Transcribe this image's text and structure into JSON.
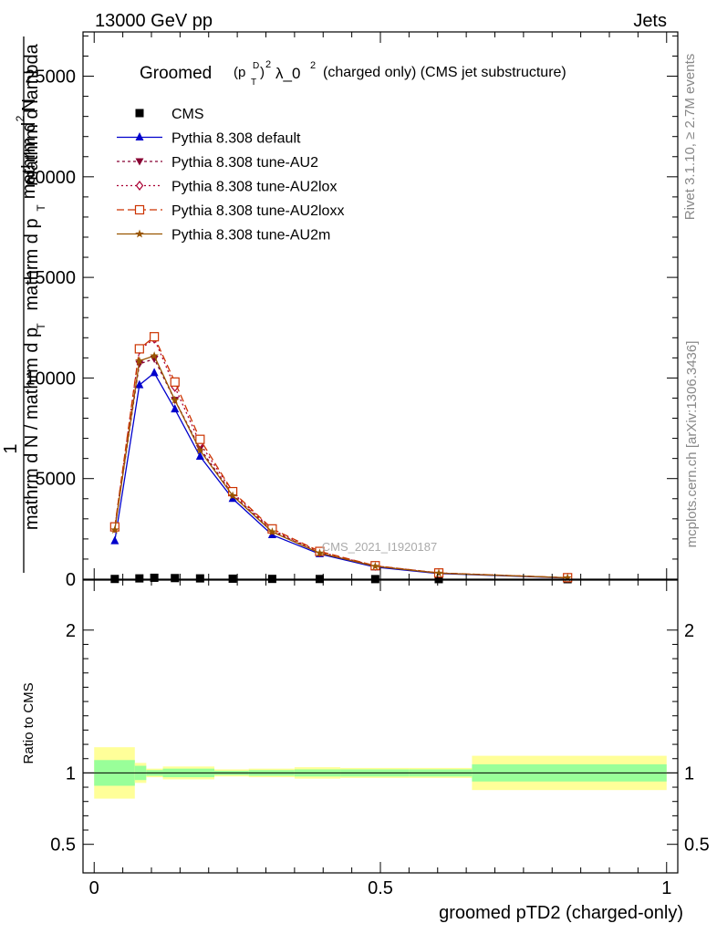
{
  "header": {
    "left": "13000 GeV pp",
    "right": "Jets"
  },
  "title": {
    "prefix": "Groomed",
    "p": "(p",
    "sup_d": "D",
    "sub_t": "T",
    "close": ")",
    "sq1": "2",
    "lambda": "λ_0",
    "sq2": "2",
    "rest": "(charged only) (CMS jet substructure)"
  },
  "y_axis_label": {
    "numerator_1": "mathrm d",
    "numerator_2": "N",
    "numerator_sup": "2",
    "denominator_1": "mathrm d p",
    "denominator_sub": "T",
    "denominator_2": "mathrm d lambda",
    "prefactor": "1",
    "prefactor_den_1": "mathrm d N / mathrm d p",
    "prefactor_den_sub": "T"
  },
  "ratio_ylabel": "Ratio to CMS",
  "xlabel": "groomed pTD2 (charged-only)",
  "side_text": {
    "rivet": "Rivet 3.1.10, ≥ 2.7M events",
    "mcplots": "mcplots.cern.ch [arXiv:1306.3436]"
  },
  "watermark": "CMS_2021_I1920187",
  "legend": [
    {
      "label": "CMS",
      "color": "#000000",
      "marker": "square",
      "dash": ""
    },
    {
      "label": "Pythia 8.308 default",
      "color": "#0000cc",
      "marker": "triangle-up",
      "dash": ""
    },
    {
      "label": "Pythia 8.308 tune-AU2",
      "color": "#880033",
      "marker": "triangle-down",
      "dash": "3,3"
    },
    {
      "label": "Pythia 8.308 tune-AU2lox",
      "color": "#aa0033",
      "marker": "diamond-open",
      "dash": "2,3"
    },
    {
      "label": "Pythia 8.308 tune-AU2loxx",
      "color": "#cc3300",
      "marker": "square-open",
      "dash": "8,4"
    },
    {
      "label": "Pythia 8.308 tune-AU2m",
      "color": "#995500",
      "marker": "star",
      "dash": ""
    }
  ],
  "chart_data": {
    "type": "line",
    "xlim": [
      -0.0195,
      1.0195
    ],
    "ylim": [
      0,
      27200
    ],
    "x_ticks": [
      0,
      0.5,
      1
    ],
    "x_tick_labels": [
      "0",
      "0.5",
      "1"
    ],
    "y_ticks": [
      0,
      5000,
      10000,
      15000,
      20000,
      25000
    ],
    "y_tick_labels": [
      "0",
      "5000",
      "10000",
      "15000",
      "20000",
      "25000"
    ],
    "x": [
      0.036,
      0.079,
      0.105,
      0.141,
      0.185,
      0.242,
      0.311,
      0.394,
      0.491,
      0.602,
      0.827
    ],
    "series": [
      {
        "name": "CMS",
        "values": [
          12,
          40,
          70,
          55,
          40,
          25,
          15,
          10,
          5,
          3,
          1
        ]
      },
      {
        "name": "Pythia 8.308 default",
        "values": [
          1900,
          9650,
          10250,
          8450,
          6100,
          4000,
          2200,
          1250,
          600,
          280,
          60
        ]
      },
      {
        "name": "Pythia 8.308 tune-AU2",
        "values": [
          2500,
          10700,
          10950,
          8900,
          6500,
          4200,
          2400,
          1300,
          650,
          300,
          70
        ]
      },
      {
        "name": "Pythia 8.308 tune-AU2lox",
        "values": [
          2550,
          11400,
          11950,
          9550,
          6750,
          4300,
          2450,
          1350,
          660,
          310,
          70
        ]
      },
      {
        "name": "Pythia 8.308 tune-AU2loxx",
        "values": [
          2600,
          11450,
          12050,
          9800,
          6950,
          4350,
          2500,
          1380,
          670,
          310,
          75
        ]
      },
      {
        "name": "Pythia 8.308 tune-AU2m",
        "values": [
          2450,
          10850,
          11100,
          8900,
          6400,
          4150,
          2350,
          1300,
          640,
          300,
          70
        ]
      }
    ],
    "ratio": {
      "ylabel": "Ratio to CMS",
      "ylim": [
        0.3,
        2.35
      ],
      "y_ticks": [
        0.5,
        1,
        2
      ],
      "y_tick_labels": [
        "0.5",
        "1",
        "2"
      ],
      "bins": [
        {
          "lo": 0.0,
          "hi": 0.071,
          "inner": [
            0.91,
            1.09
          ],
          "outer": [
            0.82,
            1.18
          ]
        },
        {
          "lo": 0.071,
          "hi": 0.091,
          "inner": [
            0.95,
            1.05
          ],
          "outer": [
            0.93,
            1.07
          ]
        },
        {
          "lo": 0.091,
          "hi": 0.12,
          "inner": [
            0.98,
            1.02
          ],
          "outer": [
            0.97,
            1.03
          ]
        },
        {
          "lo": 0.12,
          "hi": 0.21,
          "inner": [
            0.97,
            1.03
          ],
          "outer": [
            0.955,
            1.045
          ]
        },
        {
          "lo": 0.21,
          "hi": 0.27,
          "inner": [
            0.985,
            1.015
          ],
          "outer": [
            0.975,
            1.025
          ]
        },
        {
          "lo": 0.27,
          "hi": 0.35,
          "inner": [
            0.98,
            1.02
          ],
          "outer": [
            0.97,
            1.03
          ]
        },
        {
          "lo": 0.35,
          "hi": 0.43,
          "inner": [
            0.975,
            1.025
          ],
          "outer": [
            0.96,
            1.04
          ]
        },
        {
          "lo": 0.43,
          "hi": 0.55,
          "inner": [
            0.975,
            1.025
          ],
          "outer": [
            0.965,
            1.035
          ]
        },
        {
          "lo": 0.55,
          "hi": 0.66,
          "inner": [
            0.975,
            1.025
          ],
          "outer": [
            0.965,
            1.035
          ]
        },
        {
          "lo": 0.66,
          "hi": 1.0,
          "inner": [
            0.94,
            1.06
          ],
          "outer": [
            0.88,
            1.12
          ]
        }
      ]
    }
  }
}
